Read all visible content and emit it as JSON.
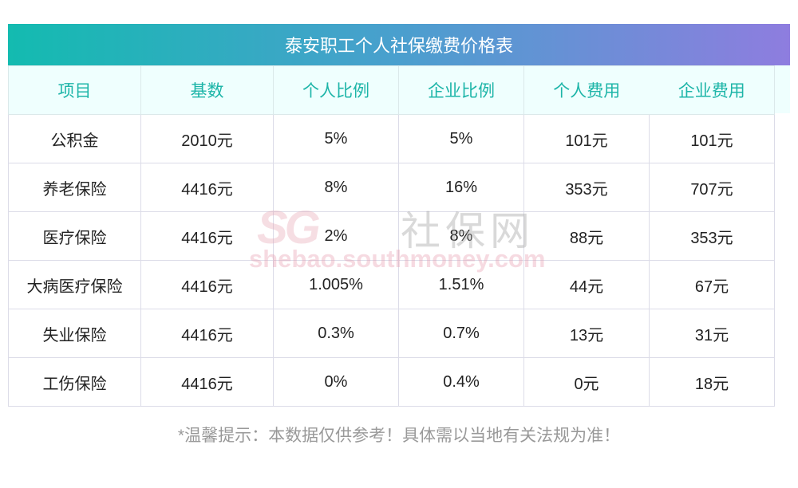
{
  "title": "泰安职工个人社保缴费价格表",
  "columns": [
    "项目",
    "基数",
    "个人比例",
    "企业比例",
    "个人费用",
    "企业费用"
  ],
  "rows": [
    [
      "公积金",
      "2010元",
      "5%",
      "5%",
      "101元",
      "101元"
    ],
    [
      "养老保险",
      "4416元",
      "8%",
      "16%",
      "353元",
      "707元"
    ],
    [
      "医疗保险",
      "4416元",
      "2%",
      "8%",
      "88元",
      "353元"
    ],
    [
      "大病医疗保险",
      "4416元",
      "1.005%",
      "1.51%",
      "44元",
      "67元"
    ],
    [
      "失业保险",
      "4416元",
      "0.3%",
      "0.7%",
      "13元",
      "31元"
    ],
    [
      "工伤保险",
      "4416元",
      "0%",
      "0.4%",
      "0元",
      "18元"
    ]
  ],
  "watermark": {
    "logo": "SG",
    "name": "社保网",
    "url": "shebao.southmoney.com"
  },
  "note": "*温馨提示：本数据仅供参考！具体需以当地有关法规为准！"
}
